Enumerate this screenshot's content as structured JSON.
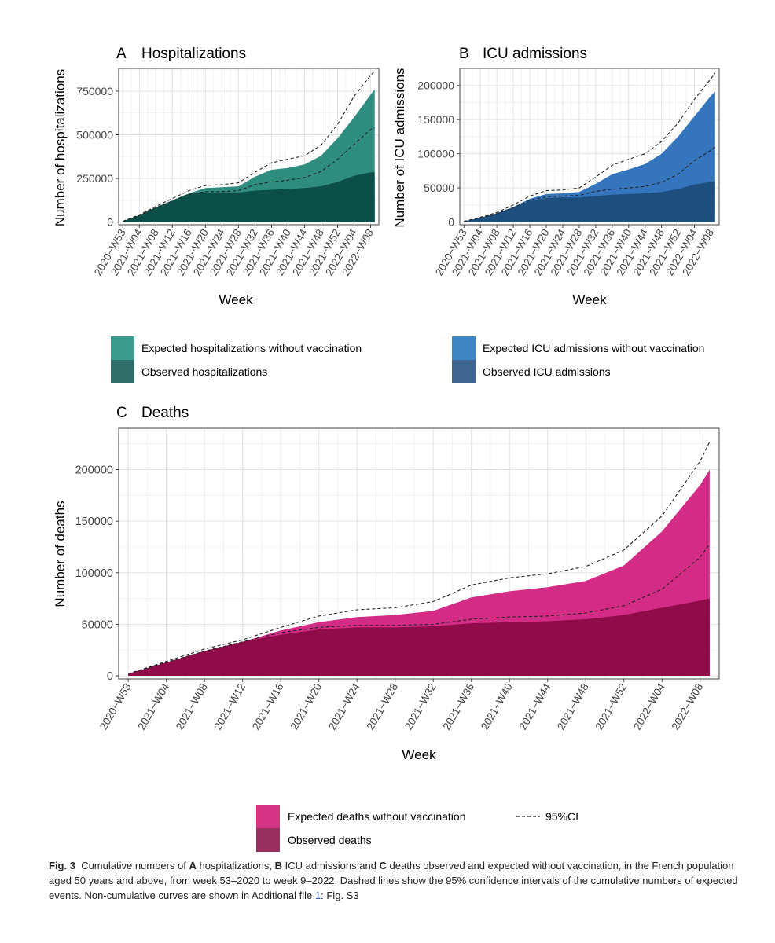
{
  "chart_data": [
    {
      "id": "A",
      "type": "area",
      "panel_letter": "A",
      "title": "Hospitalizations",
      "xlabel": "Week",
      "ylabel": "Number of hospitalizations",
      "ylim": [
        -15000,
        880000
      ],
      "yticks": [
        0,
        250000,
        500000,
        750000
      ],
      "ytick_labels": [
        "0",
        "250000",
        "500000",
        "750000"
      ],
      "x_tick_labels": [
        "2020−W53",
        "2021−W04",
        "2021−W08",
        "2021−W12",
        "2021−W16",
        "2021−W20",
        "2021−W24",
        "2021−W28",
        "2021−W32",
        "2021−W36",
        "2021−W40",
        "2021−W44",
        "2021−W48",
        "2021−W52",
        "2022−W04",
        "2022−W08"
      ],
      "x_weeks": [
        0,
        4,
        8,
        12,
        16,
        20,
        24,
        28,
        32,
        36,
        40,
        44,
        48,
        52,
        56,
        60,
        61
      ],
      "expected": [
        5000,
        40000,
        85000,
        125000,
        165000,
        195000,
        200000,
        205000,
        260000,
        300000,
        310000,
        330000,
        380000,
        480000,
        600000,
        730000,
        760000
      ],
      "observed": [
        5000,
        40000,
        85000,
        120000,
        160000,
        170000,
        170000,
        170000,
        180000,
        185000,
        190000,
        195000,
        205000,
        230000,
        265000,
        285000,
        285000
      ],
      "ci_upper": [
        5000,
        42000,
        90000,
        135000,
        180000,
        210000,
        215000,
        225000,
        285000,
        340000,
        360000,
        380000,
        440000,
        560000,
        720000,
        840000,
        865000
      ],
      "ci_lower": [
        5000,
        38000,
        82000,
        120000,
        160000,
        175000,
        175000,
        180000,
        215000,
        230000,
        240000,
        255000,
        290000,
        360000,
        445000,
        530000,
        540000
      ],
      "legend": [
        {
          "label": "Expected hospitalizations without vaccination",
          "color": "#3a9b8e"
        },
        {
          "label": "Observed hospitalizations",
          "color": "#2f6e69"
        }
      ],
      "colors": {
        "expected": "#2f8d80",
        "observed": "#0c4e48"
      }
    },
    {
      "id": "B",
      "type": "area",
      "panel_letter": "B",
      "title": "ICU admissions",
      "xlabel": "Week",
      "ylabel": "Number of ICU admissions",
      "ylim": [
        -4000,
        225000
      ],
      "yticks": [
        0,
        50000,
        100000,
        150000,
        200000
      ],
      "ytick_labels": [
        "0",
        "50000",
        "100000",
        "150000",
        "200000"
      ],
      "x_tick_labels": [
        "2020−W53",
        "2021−W04",
        "2021−W08",
        "2021−W12",
        "2021−W16",
        "2021−W20",
        "2021−W24",
        "2021−W28",
        "2021−W32",
        "2021−W36",
        "2021−W40",
        "2021−W44",
        "2021−W48",
        "2021−W52",
        "2022−W04",
        "2022−W08"
      ],
      "x_weeks": [
        0,
        4,
        8,
        12,
        16,
        20,
        24,
        28,
        32,
        36,
        40,
        44,
        48,
        52,
        56,
        60,
        61
      ],
      "expected": [
        1000,
        6000,
        13000,
        22000,
        34000,
        41000,
        42000,
        44000,
        56000,
        70000,
        77000,
        85000,
        100000,
        125000,
        155000,
        185000,
        191000
      ],
      "observed": [
        1000,
        6000,
        13000,
        21000,
        31000,
        35000,
        36000,
        36000,
        38000,
        40000,
        41000,
        42000,
        44000,
        48000,
        55000,
        59000,
        60000
      ],
      "ci_upper": [
        1000,
        7000,
        14000,
        25000,
        38000,
        46000,
        47000,
        50000,
        66000,
        83000,
        92000,
        100000,
        118000,
        145000,
        180000,
        210000,
        218000
      ],
      "ci_lower": [
        1000,
        6000,
        12000,
        21000,
        32000,
        37000,
        38000,
        39000,
        45000,
        48000,
        50000,
        52000,
        58000,
        70000,
        90000,
        105000,
        110000
      ],
      "legend": [
        {
          "label": "Expected ICU admissions without vaccination",
          "color": "#3f86c6"
        },
        {
          "label": "Observed ICU admissions",
          "color": "#3e6592"
        }
      ],
      "colors": {
        "expected": "#3575bd",
        "observed": "#1d4f7e"
      }
    },
    {
      "id": "C",
      "type": "area",
      "panel_letter": "C",
      "title": "Deaths",
      "xlabel": "Week",
      "ylabel": "Number of deaths",
      "ylim": [
        -3000,
        240000
      ],
      "yticks": [
        0,
        50000,
        100000,
        150000,
        200000
      ],
      "ytick_labels": [
        "0",
        "50000",
        "100000",
        "150000",
        "200000"
      ],
      "x_tick_labels": [
        "2020−W53",
        "2021−W04",
        "2021−W08",
        "2021−W12",
        "2021−W16",
        "2021−W20",
        "2021−W24",
        "2021−W28",
        "2021−W32",
        "2021−W36",
        "2021−W40",
        "2021−W44",
        "2021−W48",
        "2021−W52",
        "2022−W04",
        "2022−W08"
      ],
      "x_weeks": [
        0,
        4,
        8,
        12,
        16,
        20,
        24,
        28,
        32,
        36,
        40,
        44,
        48,
        52,
        56,
        60,
        61
      ],
      "expected": [
        2000,
        13000,
        24000,
        33000,
        44000,
        52000,
        57000,
        59000,
        63000,
        76000,
        82000,
        86000,
        92000,
        107000,
        140000,
        185000,
        200000
      ],
      "observed": [
        2000,
        13000,
        24000,
        33000,
        40000,
        45000,
        47000,
        47000,
        48000,
        51000,
        52000,
        53000,
        55000,
        59000,
        66000,
        73000,
        75000
      ],
      "ci_upper": [
        2000,
        14000,
        26000,
        35000,
        47000,
        58000,
        64000,
        66000,
        72000,
        88000,
        95000,
        99000,
        106000,
        122000,
        155000,
        208000,
        227000
      ],
      "ci_lower": [
        2000,
        13000,
        24000,
        33000,
        42000,
        47000,
        49000,
        49000,
        50000,
        55000,
        57000,
        58000,
        61000,
        68000,
        84000,
        115000,
        128000
      ],
      "legend": [
        {
          "label": "Expected deaths without vaccination",
          "color": "#d63384"
        },
        {
          "label": "Observed deaths",
          "color": "#97305f"
        }
      ],
      "ci_legend_label": "95%CI",
      "colors": {
        "expected": "#d42c86",
        "observed": "#8f0b4a"
      }
    }
  ],
  "caption": {
    "fig_label": "Fig. 3",
    "text_1": "Cumulative numbers of ",
    "a": "A",
    "text_2": " hospitalizations, ",
    "b": "B",
    "text_3": " ICU admissions and ",
    "c": "C",
    "text_4": " deaths observed and expected without vaccination, in the French population aged 50 years and above, from week 53–2020 to week 9–2022. Dashed lines show the 95% confidence intervals of the cumulative numbers of expected events. Non-cumulative curves are shown in Additional file ",
    "link": "1",
    "text_5": ": Fig. S3"
  }
}
